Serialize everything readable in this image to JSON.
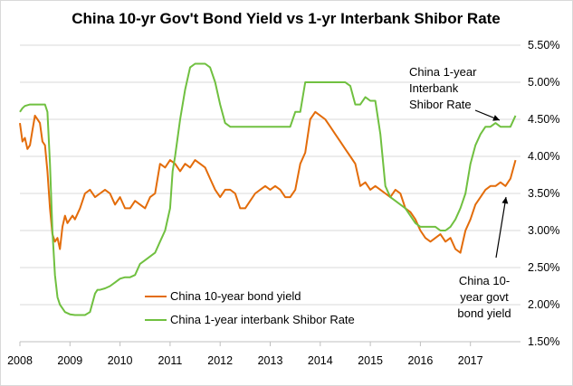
{
  "colors": {
    "bond_series": "#E36C0A",
    "shibor_series": "#70C040",
    "gridline": "#d9d9d9",
    "axis": "#bfbfbf",
    "arrow": "#000000"
  },
  "chart_data": {
    "type": "line",
    "title": "China 10-yr Gov't Bond Yield vs 1-yr Interbank Shibor Rate",
    "xlabel": "",
    "ylabel": "",
    "x_ticks": [
      "2008",
      "2009",
      "2010",
      "2011",
      "2012",
      "2013",
      "2014",
      "2015",
      "2016",
      "2017"
    ],
    "y_ticks": [
      "1.50%",
      "2.00%",
      "2.50%",
      "3.00%",
      "3.50%",
      "4.00%",
      "4.50%",
      "5.00%",
      "5.50%"
    ],
    "ylim": [
      1.5,
      5.5
    ],
    "xlim": [
      2008.0,
      2018.0
    ],
    "grid": "horizontal",
    "y_axis_side": "right",
    "legend_position": "bottom-left",
    "series": [
      {
        "name": "China 10-year bond yield",
        "color": "#E36C0A",
        "x": [
          2008.0,
          2008.05,
          2008.1,
          2008.15,
          2008.2,
          2008.25,
          2008.3,
          2008.35,
          2008.4,
          2008.45,
          2008.5,
          2008.55,
          2008.6,
          2008.65,
          2008.7,
          2008.75,
          2008.8,
          2008.85,
          2008.9,
          2008.95,
          2009.0,
          2009.05,
          2009.1,
          2009.2,
          2009.3,
          2009.4,
          2009.5,
          2009.6,
          2009.7,
          2009.8,
          2009.9,
          2010.0,
          2010.1,
          2010.2,
          2010.3,
          2010.4,
          2010.5,
          2010.6,
          2010.7,
          2010.8,
          2010.9,
          2011.0,
          2011.1,
          2011.2,
          2011.3,
          2011.4,
          2011.5,
          2011.6,
          2011.7,
          2011.8,
          2011.9,
          2012.0,
          2012.1,
          2012.2,
          2012.3,
          2012.4,
          2012.5,
          2012.6,
          2012.7,
          2012.8,
          2012.9,
          2013.0,
          2013.1,
          2013.2,
          2013.3,
          2013.4,
          2013.5,
          2013.6,
          2013.7,
          2013.8,
          2013.9,
          2014.0,
          2014.1,
          2014.2,
          2014.3,
          2014.4,
          2014.5,
          2014.6,
          2014.7,
          2014.8,
          2014.9,
          2015.0,
          2015.1,
          2015.2,
          2015.3,
          2015.4,
          2015.5,
          2015.6,
          2015.7,
          2015.8,
          2015.9,
          2016.0,
          2016.1,
          2016.2,
          2016.3,
          2016.4,
          2016.5,
          2016.6,
          2016.7,
          2016.8,
          2016.9,
          2017.0,
          2017.1,
          2017.2,
          2017.3,
          2017.4,
          2017.5,
          2017.6,
          2017.7,
          2017.8,
          2017.9
        ],
        "values": [
          4.45,
          4.2,
          4.25,
          4.1,
          4.15,
          4.35,
          4.55,
          4.5,
          4.45,
          4.2,
          4.15,
          3.8,
          3.3,
          2.95,
          2.85,
          2.9,
          2.75,
          3.05,
          3.2,
          3.1,
          3.15,
          3.2,
          3.15,
          3.3,
          3.5,
          3.55,
          3.45,
          3.5,
          3.55,
          3.5,
          3.35,
          3.45,
          3.3,
          3.3,
          3.4,
          3.35,
          3.3,
          3.45,
          3.5,
          3.9,
          3.85,
          3.95,
          3.9,
          3.8,
          3.9,
          3.85,
          3.95,
          3.9,
          3.85,
          3.7,
          3.55,
          3.45,
          3.55,
          3.55,
          3.5,
          3.3,
          3.3,
          3.4,
          3.5,
          3.55,
          3.6,
          3.55,
          3.6,
          3.55,
          3.45,
          3.45,
          3.55,
          3.9,
          4.05,
          4.5,
          4.6,
          4.55,
          4.5,
          4.4,
          4.3,
          4.2,
          4.1,
          4.0,
          3.9,
          3.6,
          3.65,
          3.55,
          3.6,
          3.55,
          3.5,
          3.45,
          3.55,
          3.5,
          3.3,
          3.25,
          3.15,
          3.0,
          2.9,
          2.85,
          2.9,
          2.95,
          2.85,
          2.9,
          2.75,
          2.7,
          3.0,
          3.15,
          3.35,
          3.45,
          3.55,
          3.6,
          3.6,
          3.65,
          3.6,
          3.7,
          3.95
        ]
      },
      {
        "name": "China 1-year interbank Shibor Rate",
        "color": "#70C040",
        "x": [
          2008.0,
          2008.05,
          2008.1,
          2008.2,
          2008.3,
          2008.4,
          2008.5,
          2008.55,
          2008.6,
          2008.65,
          2008.7,
          2008.75,
          2008.8,
          2008.85,
          2008.9,
          2009.0,
          2009.1,
          2009.2,
          2009.3,
          2009.4,
          2009.5,
          2009.55,
          2009.6,
          2009.7,
          2009.8,
          2009.9,
          2010.0,
          2010.1,
          2010.2,
          2010.3,
          2010.4,
          2010.5,
          2010.6,
          2010.7,
          2010.8,
          2010.9,
          2011.0,
          2011.05,
          2011.1,
          2011.2,
          2011.3,
          2011.4,
          2011.5,
          2011.6,
          2011.7,
          2011.8,
          2011.9,
          2012.0,
          2012.1,
          2012.2,
          2012.3,
          2012.4,
          2012.5,
          2012.6,
          2012.7,
          2012.8,
          2012.9,
          2013.0,
          2013.1,
          2013.2,
          2013.3,
          2013.4,
          2013.5,
          2013.6,
          2013.7,
          2013.8,
          2013.9,
          2014.0,
          2014.1,
          2014.2,
          2014.3,
          2014.4,
          2014.5,
          2014.6,
          2014.7,
          2014.8,
          2014.9,
          2015.0,
          2015.1,
          2015.2,
          2015.3,
          2015.4,
          2015.5,
          2015.6,
          2015.7,
          2015.8,
          2015.9,
          2016.0,
          2016.1,
          2016.2,
          2016.3,
          2016.4,
          2016.5,
          2016.6,
          2016.7,
          2016.8,
          2016.9,
          2017.0,
          2017.1,
          2017.2,
          2017.3,
          2017.4,
          2017.5,
          2017.6,
          2017.7,
          2017.8,
          2017.9
        ],
        "values": [
          4.6,
          4.65,
          4.68,
          4.7,
          4.7,
          4.7,
          4.7,
          4.6,
          3.9,
          3.0,
          2.4,
          2.1,
          2.0,
          1.95,
          1.9,
          1.87,
          1.86,
          1.86,
          1.86,
          1.9,
          2.15,
          2.2,
          2.2,
          2.22,
          2.25,
          2.3,
          2.35,
          2.37,
          2.37,
          2.4,
          2.55,
          2.6,
          2.65,
          2.7,
          2.85,
          3.0,
          3.3,
          3.8,
          4.0,
          4.5,
          4.9,
          5.2,
          5.25,
          5.25,
          5.25,
          5.2,
          5.0,
          4.7,
          4.45,
          4.4,
          4.4,
          4.4,
          4.4,
          4.4,
          4.4,
          4.4,
          4.4,
          4.4,
          4.4,
          4.4,
          4.4,
          4.4,
          4.6,
          4.6,
          5.0,
          5.0,
          5.0,
          5.0,
          5.0,
          5.0,
          5.0,
          5.0,
          5.0,
          4.95,
          4.7,
          4.7,
          4.8,
          4.75,
          4.75,
          4.3,
          3.6,
          3.45,
          3.4,
          3.35,
          3.3,
          3.2,
          3.1,
          3.05,
          3.05,
          3.05,
          3.05,
          3.0,
          3.0,
          3.05,
          3.15,
          3.3,
          3.5,
          3.9,
          4.15,
          4.3,
          4.4,
          4.4,
          4.45,
          4.4,
          4.4,
          4.4,
          4.55
        ]
      }
    ],
    "annotations": [
      {
        "id": "shibor",
        "lines": [
          "China 1-year",
          "Interbank",
          "Shibor Rate"
        ]
      },
      {
        "id": "bond",
        "lines": [
          "China 10-",
          "year govt",
          "bond yield"
        ]
      }
    ]
  }
}
